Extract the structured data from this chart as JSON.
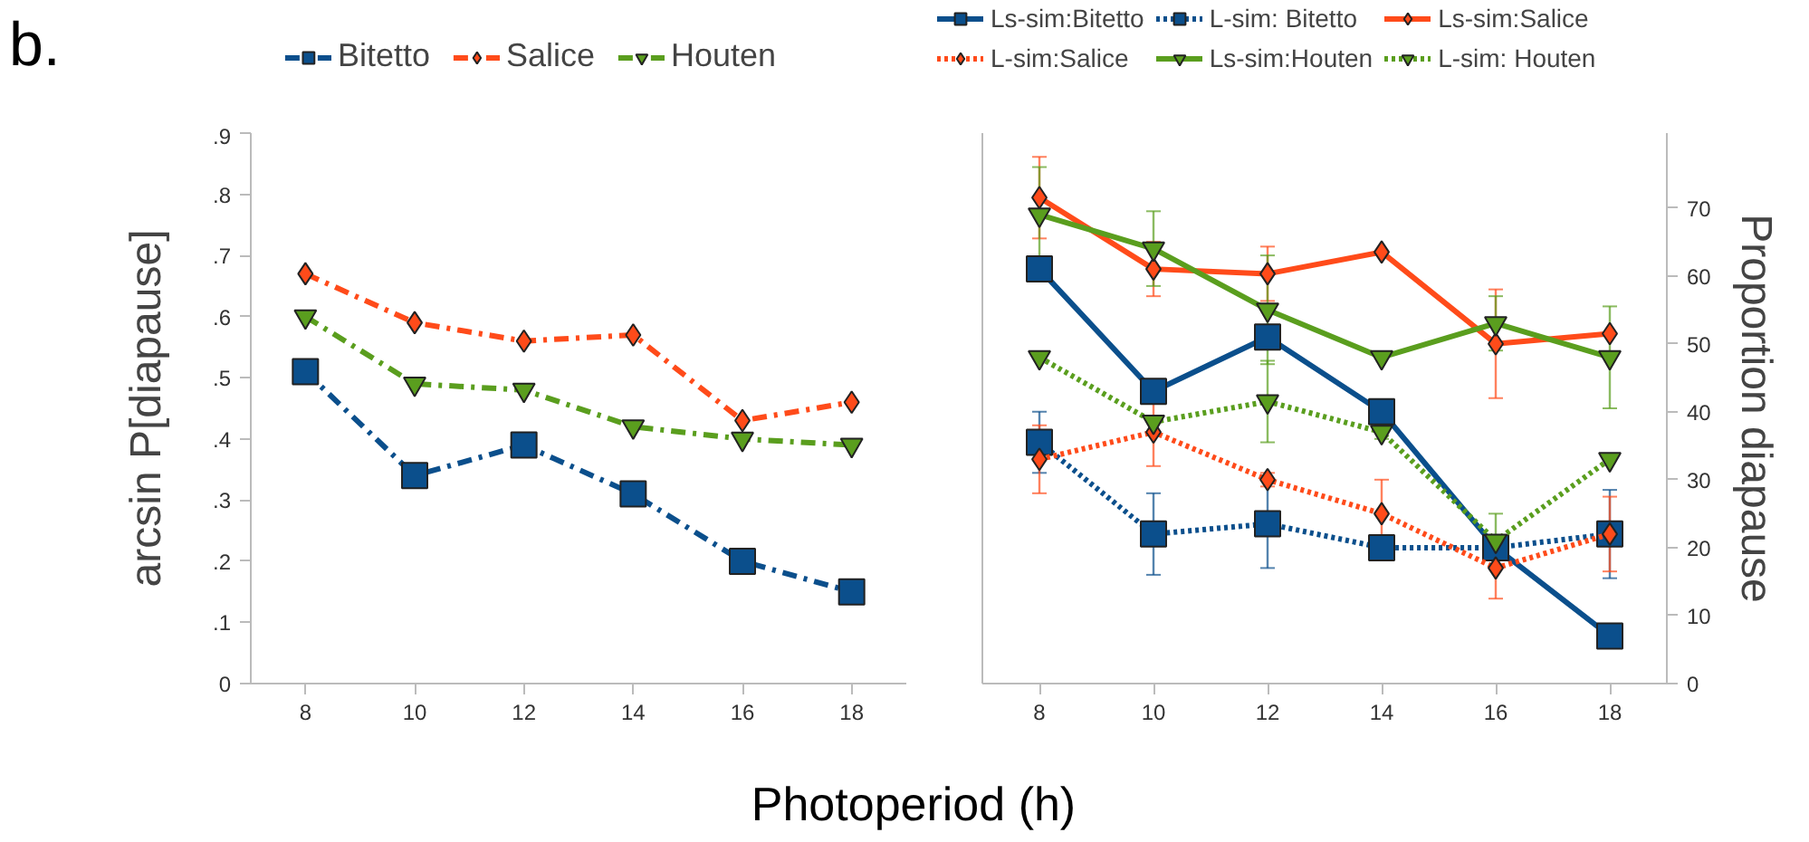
{
  "chart_data": [
    {
      "type": "line",
      "annotations": [
        "b."
      ],
      "xlabel": "Photoperiod (h)",
      "ylabel": "arcsin P[diapause]",
      "x": [
        8,
        10,
        12,
        14,
        16,
        18
      ],
      "xlim": [
        7,
        19
      ],
      "xticks": [
        8,
        10,
        12,
        14,
        16,
        18
      ],
      "ylim": [
        0,
        0.9
      ],
      "yticks": [
        0,
        {
          "value": 0.1,
          "label": ".1"
        },
        {
          "value": 0.2,
          "label": ".2"
        },
        {
          "value": 0.3,
          "label": ".3"
        },
        {
          "value": 0.4,
          "label": ".4"
        },
        {
          "value": 0.5,
          "label": ".5"
        },
        {
          "value": 0.6,
          "label": ".6"
        },
        {
          "value": 0.7,
          "label": ".7"
        },
        {
          "value": 0.8,
          "label": ".8"
        },
        {
          "value": 0.9,
          "label": ".9"
        }
      ],
      "legend": "top",
      "grid": false,
      "series": [
        {
          "name": "Bitetto",
          "color": "#0b4f8c",
          "marker": "square",
          "line_style": "dashed",
          "values": [
            0.51,
            0.34,
            0.39,
            0.31,
            0.2,
            0.15
          ]
        },
        {
          "name": "Salice",
          "color": "#ff4b1a",
          "marker": "diamond",
          "line_style": "dashed",
          "values": [
            0.67,
            0.59,
            0.56,
            0.57,
            0.43,
            0.46
          ]
        },
        {
          "name": "Houten",
          "color": "#5a9e1e",
          "marker": "triangle",
          "line_style": "dashed",
          "values": [
            0.6,
            0.49,
            0.48,
            0.42,
            0.4,
            0.39
          ]
        }
      ]
    },
    {
      "type": "line",
      "y2label": "Proportion diapause",
      "x": [
        8,
        10,
        12,
        14,
        16,
        18
      ],
      "xlim": [
        7,
        19
      ],
      "xticks": [
        8,
        10,
        12,
        14,
        16,
        18
      ],
      "y2lim": [
        0,
        81
      ],
      "y2ticks": [
        0,
        10,
        20,
        30,
        40,
        50,
        60,
        70
      ],
      "legend": "top",
      "grid": false,
      "series": [
        {
          "name": "Ls-sim:Bitetto",
          "color": "#0b4f8c",
          "marker": "square",
          "line_style": "solid",
          "axis": "y2",
          "values": [
            61,
            43,
            51,
            40,
            20,
            7
          ],
          "errors": [
            null,
            null,
            null,
            null,
            null,
            null
          ]
        },
        {
          "name": "L-sim: Bitetto",
          "color": "#0b4f8c",
          "marker": "square",
          "line_style": "dotted",
          "axis": "y2",
          "values": [
            35.5,
            22,
            23.5,
            20,
            20,
            22
          ],
          "errors": [
            4.5,
            6,
            6.5,
            1.5,
            1,
            6.5
          ]
        },
        {
          "name": "Ls-sim:Salice",
          "color": "#ff4b1a",
          "marker": "diamond",
          "line_style": "solid",
          "axis": "y2",
          "values": [
            71.5,
            61,
            60.3,
            63.5,
            50,
            51.5
          ],
          "errors": [
            6,
            4,
            4,
            null,
            8,
            null
          ]
        },
        {
          "name": "L-sim:Salice",
          "color": "#ff4b1a",
          "marker": "diamond",
          "line_style": "dotted",
          "axis": "y2",
          "values": [
            33,
            37,
            30,
            25,
            17,
            22
          ],
          "errors": [
            5,
            5,
            1,
            5,
            4.5,
            5.5
          ]
        },
        {
          "name": "Ls-sim:Houten",
          "color": "#5a9e1e",
          "marker": "triangle",
          "line_style": "solid",
          "axis": "y2",
          "values": [
            69,
            64,
            55,
            48,
            53,
            48
          ],
          "errors": [
            7,
            5.5,
            8,
            null,
            4,
            7.5
          ]
        },
        {
          "name": "L-sim: Houten",
          "color": "#5a9e1e",
          "marker": "triangle",
          "line_style": "dotted",
          "axis": "y2",
          "values": [
            48,
            38.5,
            41.5,
            37,
            21,
            33
          ],
          "errors": [
            null,
            null,
            6,
            1,
            4,
            null
          ]
        }
      ]
    }
  ]
}
